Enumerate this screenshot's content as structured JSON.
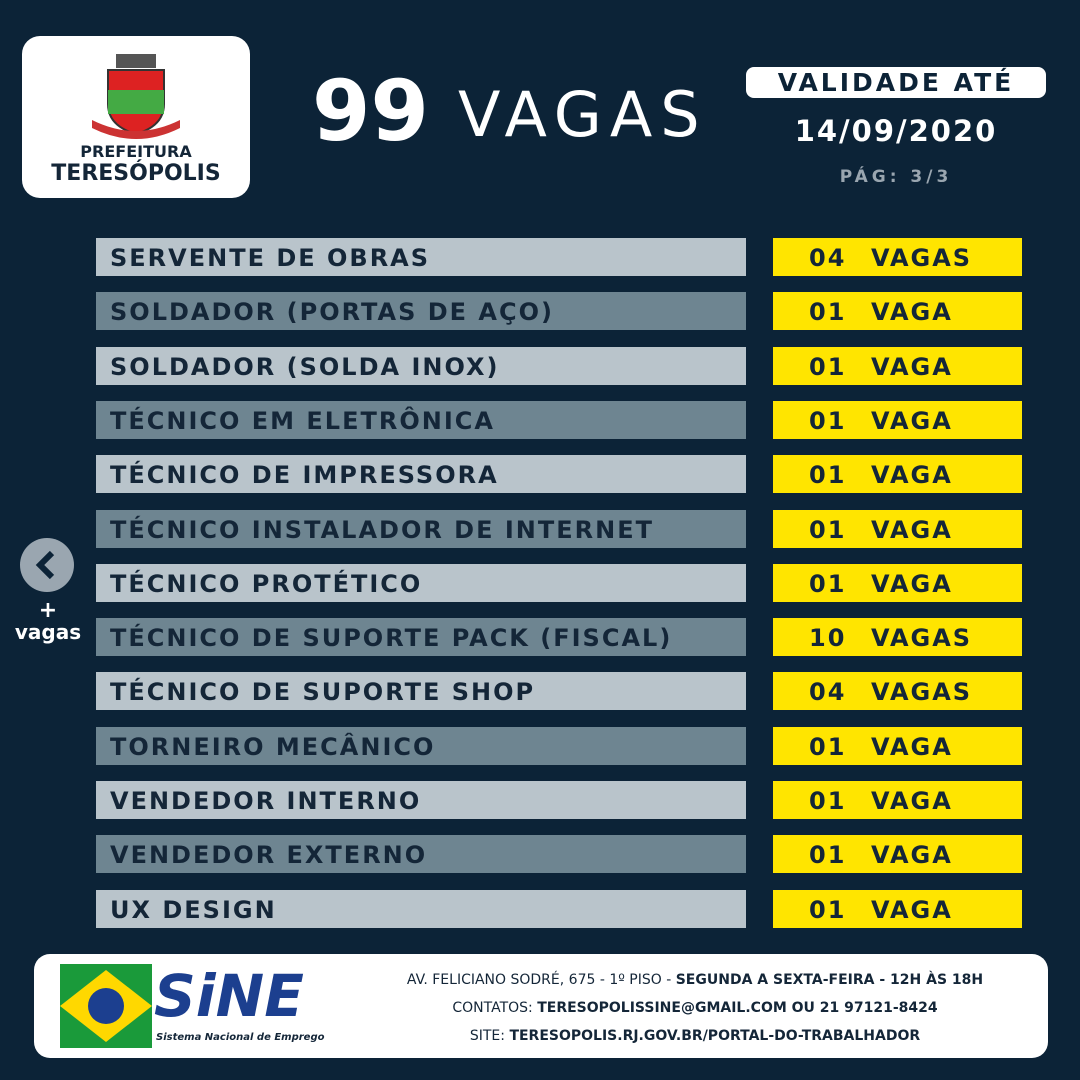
{
  "header": {
    "logo_line1": "PREFEITURA",
    "logo_line2": "TERESÓPOLIS",
    "count": "99",
    "title": "VAGAS",
    "validity_label": "VALIDADE ATÉ",
    "validity_date": "14/09/2020",
    "page": "PÁG: 3/3"
  },
  "nav": {
    "plus": "+",
    "label": "vagas"
  },
  "jobs": [
    {
      "title": "SERVENTE DE OBRAS",
      "count": "04",
      "unit": "VAGAS"
    },
    {
      "title": "SOLDADOR (PORTAS DE AÇO)",
      "count": "01",
      "unit": "VAGA"
    },
    {
      "title": "SOLDADOR (SOLDA INOX)",
      "count": "01",
      "unit": "VAGA"
    },
    {
      "title": "TÉCNICO EM ELETRÔNICA",
      "count": "01",
      "unit": "VAGA"
    },
    {
      "title": "TÉCNICO DE IMPRESSORA",
      "count": "01",
      "unit": "VAGA"
    },
    {
      "title": "TÉCNICO INSTALADOR DE INTERNET",
      "count": "01",
      "unit": "VAGA"
    },
    {
      "title": "TÉCNICO PROTÉTICO",
      "count": "01",
      "unit": "VAGA"
    },
    {
      "title": "TÉCNICO DE SUPORTE PACK (FISCAL)",
      "count": "10",
      "unit": "VAGAS"
    },
    {
      "title": "TÉCNICO DE SUPORTE SHOP",
      "count": "04",
      "unit": "VAGAS"
    },
    {
      "title": "TORNEIRO MECÂNICO",
      "count": "01",
      "unit": "VAGA"
    },
    {
      "title": "VENDEDOR INTERNO",
      "count": "01",
      "unit": "VAGA"
    },
    {
      "title": "VENDEDOR EXTERNO",
      "count": "01",
      "unit": "VAGA"
    },
    {
      "title": "UX DESIGN",
      "count": "01",
      "unit": "VAGA"
    }
  ],
  "footer": {
    "logo": "SiNE",
    "logo_sub": "Sistema Nacional de Emprego",
    "address": "AV. FELICIANO SODRÉ, 675 - 1º PISO - ",
    "hours": "SEGUNDA A SEXTA-FEIRA - 12H ÀS 18H",
    "contacts_label": "CONTATOS: ",
    "contacts": "TERESOPOLISSINE@GMAIL.COM OU 21 97121-8424",
    "site_label": "SITE: ",
    "site": "TERESOPOLIS.RJ.GOV.BR/PORTAL-DO-TRABALHADOR"
  }
}
